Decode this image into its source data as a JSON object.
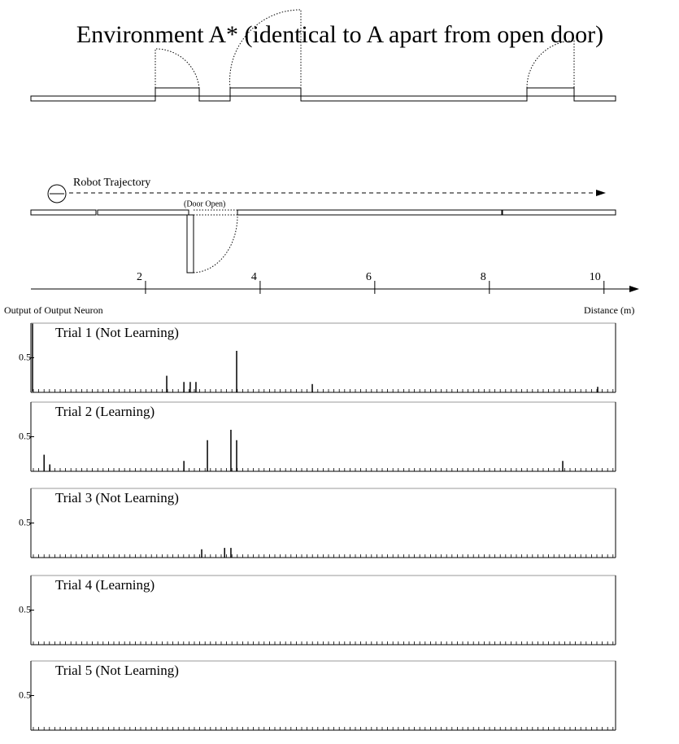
{
  "title": "Environment A* (identical to A apart from open door)",
  "diagram": {
    "trajectory_label": "Robot Trajectory",
    "door_label": "(Door Open)"
  },
  "y_axis_label": "Output of Output Neuron",
  "distance_axis": {
    "label": "Distance (m)",
    "xlim": [
      0,
      10.5
    ],
    "ticks": [
      2,
      4,
      6,
      8,
      10
    ]
  },
  "chart_data": [
    {
      "type": "bar",
      "title": "Trial 1 (Not Learning)",
      "x": [
        2.37,
        2.67,
        2.78,
        2.88,
        3.59,
        4.91,
        9.89
      ],
      "values": [
        0.24,
        0.15,
        0.15,
        0.15,
        0.6,
        0.12,
        0.08
      ],
      "ylim": [
        0,
        1
      ],
      "yticks": [
        0.5
      ],
      "color": "#000000"
    },
    {
      "type": "bar",
      "title": "Trial 2 (Learning)",
      "x": [
        0.23,
        0.33,
        2.67,
        3.08,
        3.49,
        3.59,
        9.28
      ],
      "values": [
        0.24,
        0.1,
        0.15,
        0.45,
        0.6,
        0.45,
        0.15
      ],
      "ylim": [
        0,
        1
      ],
      "yticks": [
        0.5
      ],
      "color": "#000000"
    },
    {
      "type": "bar",
      "title": "Trial 3 (Not Learning)",
      "x": [
        2.98,
        3.38,
        3.49
      ],
      "values": [
        0.12,
        0.14,
        0.14
      ],
      "ylim": [
        0,
        1
      ],
      "yticks": [
        0.5
      ],
      "color": "#000000"
    },
    {
      "type": "bar",
      "title": "Trial 4 (Learning)",
      "x": [],
      "values": [],
      "ylim": [
        0,
        1
      ],
      "yticks": [
        0.5
      ],
      "color": "#000000"
    },
    {
      "type": "bar",
      "title": "Trial 5 (Not Learning)",
      "x": [],
      "values": [],
      "ylim": [
        0,
        1
      ],
      "yticks": [
        0.5
      ],
      "color": "#000000"
    }
  ]
}
